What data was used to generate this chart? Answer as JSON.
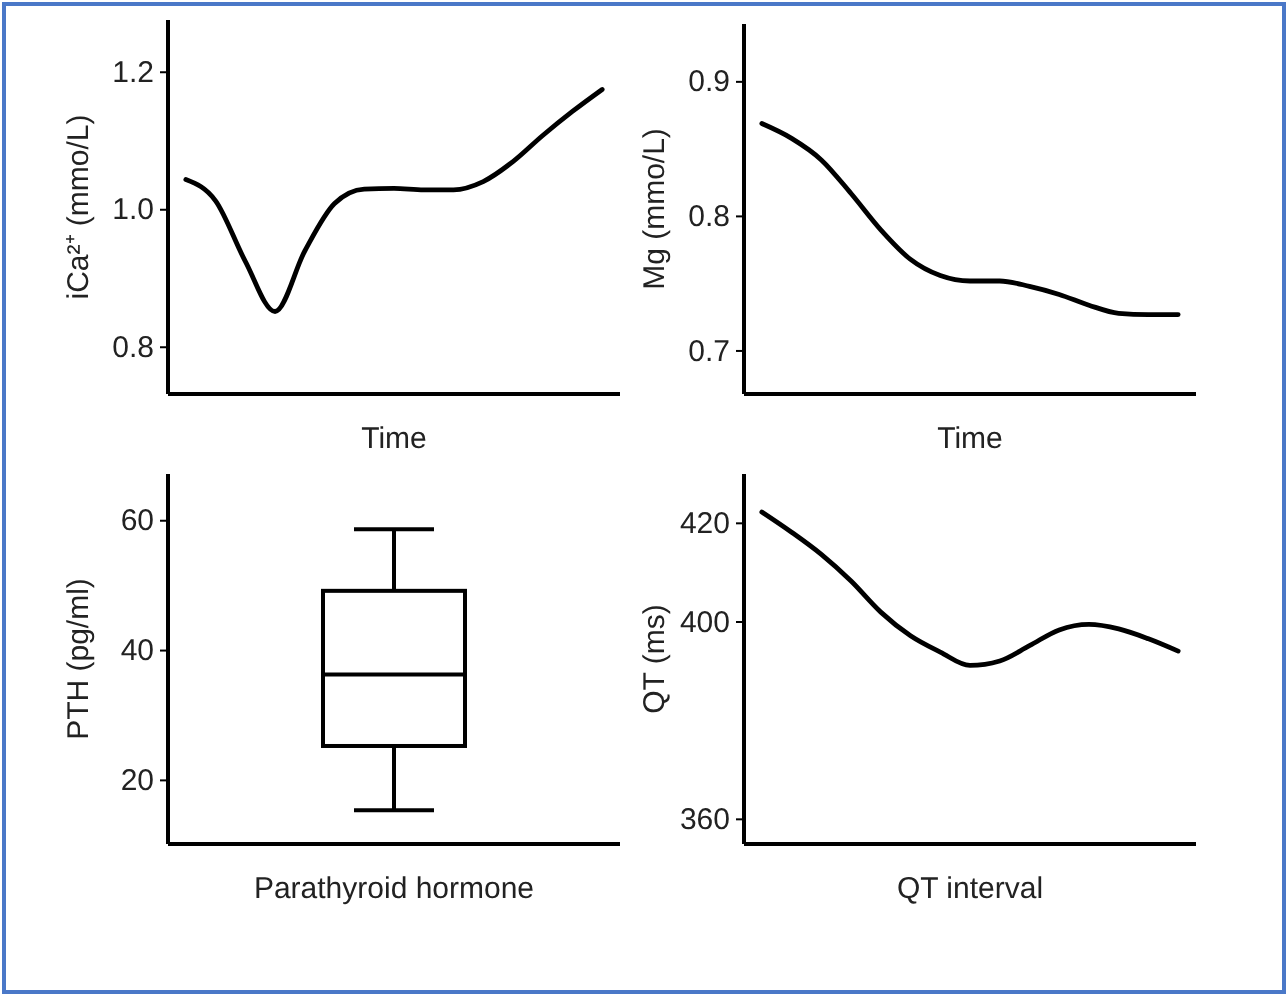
{
  "chart_data": [
    {
      "type": "line",
      "ylabel": "iCa²⁺ (mmo/L)",
      "xlabel": "Time",
      "categories": [
        null,
        null,
        null,
        null,
        null,
        null,
        null,
        null,
        null,
        null,
        null,
        null,
        null,
        null,
        null
      ],
      "ylim": [
        0.732,
        1.276
      ],
      "yticks": [
        {
          "value": 0.8,
          "label": "0.8"
        },
        {
          "value": 1.0,
          "label": "1.0"
        },
        {
          "value": 1.2,
          "label": "1.2"
        }
      ],
      "series": [
        {
          "color": "#000000",
          "values": [
            1.044,
            1.013,
            0.925,
            0.852,
            0.94,
            1.009,
            1.03,
            1.031,
            1.029,
            1.029,
            1.041,
            1.07,
            1.108,
            1.143,
            1.175
          ]
        }
      ]
    },
    {
      "type": "line",
      "ylabel": "Mg (mmo/L)",
      "xlabel": "Time",
      "categories": [
        null,
        null,
        null,
        null,
        null,
        null,
        null,
        null,
        null,
        null,
        null,
        null,
        null,
        null,
        null
      ],
      "ylim": [
        0.668,
        0.943
      ],
      "yticks": [
        0.7,
        0.8,
        0.9
      ],
      "series": [
        {
          "color": "#000000",
          "values": [
            0.869,
            0.858,
            0.842,
            0.817,
            0.79,
            0.768,
            0.756,
            0.752,
            0.752,
            0.748,
            0.742,
            0.734,
            0.728,
            0.727,
            0.727
          ]
        }
      ]
    },
    {
      "type": "box",
      "ylabel": "PTH (pg/ml)",
      "xlabel": "Parathyroid hormone",
      "categories": [
        null
      ],
      "ylim": [
        10.2,
        67.2
      ],
      "yticks": [
        20,
        40,
        60
      ],
      "series": [
        {
          "color": "#000000",
          "boxes": [
            {
              "low": 15.4,
              "q1": 25.3,
              "median": 36.3,
              "q3": 49.2,
              "high": 58.7
            }
          ]
        }
      ]
    },
    {
      "type": "line",
      "ylabel": "QT (ms)",
      "xlabel": "QT interval",
      "categories": [
        null,
        null,
        null,
        null,
        null,
        null,
        null,
        null,
        null,
        null,
        null,
        null,
        null,
        null,
        null
      ],
      "ylim": [
        355,
        430
      ],
      "yticks": [
        360,
        400,
        420
      ],
      "series": [
        {
          "color": "#000000",
          "values": [
            422.3,
            418.2,
            413.7,
            408.3,
            402,
            397.2,
            393.9,
            391.2,
            392.1,
            395.2,
            398.4,
            399.5,
            398.6,
            396.6,
            394.1
          ]
        }
      ]
    }
  ]
}
